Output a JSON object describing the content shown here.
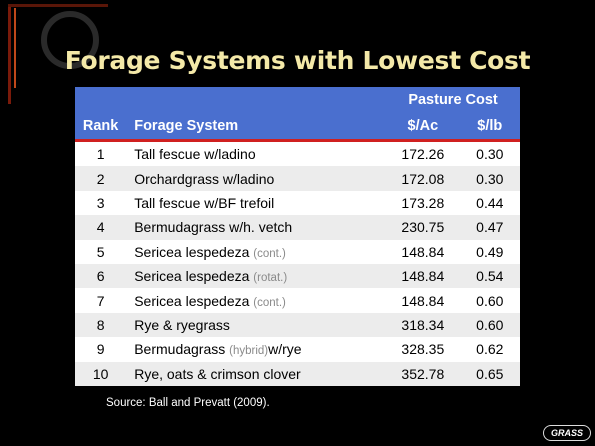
{
  "header": {
    "title": "Forage Systems with Lowest Cost"
  },
  "table": {
    "group_header": "Pasture Cost",
    "columns": [
      "Rank",
      "Forage System",
      "$/Ac",
      "$/lb"
    ],
    "rows": [
      {
        "rank": "1",
        "system": "Tall fescue w/ladino",
        "per_acre": "172.26",
        "per_lb": "0.30"
      },
      {
        "rank": "2",
        "system": "Orchardgrass w/ladino",
        "per_acre": "172.08",
        "per_lb": "0.30"
      },
      {
        "rank": "3",
        "system": "Tall fescue w/BF trefoil",
        "per_acre": "173.28",
        "per_lb": "0.44"
      },
      {
        "rank": "4",
        "system": "Bermudagrass w/h. vetch",
        "per_acre": "230.75",
        "per_lb": "0.47"
      },
      {
        "rank": "5",
        "system": "Sericea lespedeza",
        "note": "(cont.)",
        "per_acre": "148.84",
        "per_lb": "0.49"
      },
      {
        "rank": "6",
        "system": "Sericea lespedeza",
        "note": "(rotat.)",
        "per_acre": "148.84",
        "per_lb": "0.54"
      },
      {
        "rank": "7",
        "system": "Sericea lespedeza",
        "note": "(cont.)",
        "per_acre": "148.84",
        "per_lb": "0.60"
      },
      {
        "rank": "8",
        "system": "Rye & ryegrass",
        "per_acre": "318.34",
        "per_lb": "0.60"
      },
      {
        "rank": "9",
        "system": "Bermudagrass",
        "note": "(hybrid)",
        "after": "w/rye",
        "per_acre": "328.35",
        "per_lb": "0.62"
      },
      {
        "rank": "10",
        "system": "Rye, oats & crimson clover",
        "per_acre": "352.78",
        "per_lb": "0.65"
      }
    ]
  },
  "source": "Source: Ball and Prevatt (2009).",
  "logo": "GRASS"
}
